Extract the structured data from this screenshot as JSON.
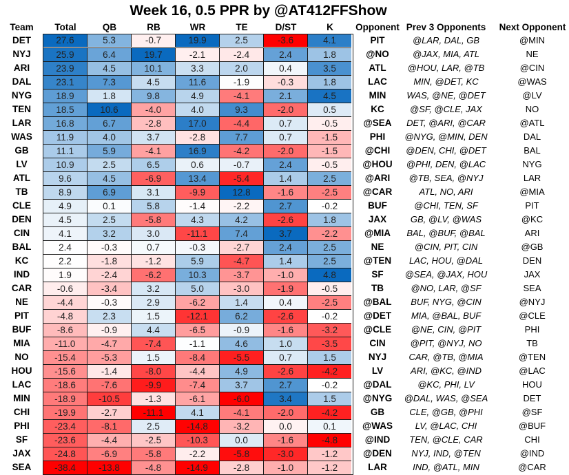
{
  "chart_data": {
    "type": "heatmap",
    "title": "Week 16, 0.5 PPR by @AT412FFShow",
    "columns": [
      "Team",
      "Total",
      "QB",
      "RB",
      "WR",
      "TE",
      "D/ST",
      "K",
      "Opponent",
      "Prev  3 Opponents",
      "Next Opponent"
    ],
    "color_scale": {
      "low": "#ff0000",
      "mid": "#ffffff",
      "high": "#0a6abf"
    },
    "rows": [
      {
        "team": "DET",
        "values": [
          27.6,
          5.3,
          -0.7,
          19.9,
          2.5,
          -3.6,
          4.1
        ],
        "opponent": "PIT",
        "prev": "@LAR, DAL, GB",
        "next": "@MIN"
      },
      {
        "team": "NYJ",
        "values": [
          25.9,
          6.4,
          19.7,
          -2.1,
          -2.4,
          2.4,
          1.8
        ],
        "opponent": "@NO",
        "prev": "@JAX, MIA, ATL",
        "next": "NE"
      },
      {
        "team": "ARI",
        "values": [
          23.9,
          4.5,
          10.1,
          3.3,
          2.0,
          0.4,
          3.5
        ],
        "opponent": "ATL",
        "prev": "@HOU, LAR, @TB",
        "next": "@CIN"
      },
      {
        "team": "DAL",
        "values": [
          23.1,
          7.3,
          4.5,
          11.6,
          -1.9,
          -0.3,
          1.8
        ],
        "opponent": "LAC",
        "prev": "MIN, @DET, KC",
        "next": "@WAS"
      },
      {
        "team": "NYG",
        "values": [
          18.9,
          1.8,
          9.8,
          4.9,
          -4.1,
          2.1,
          4.5
        ],
        "opponent": "MIN",
        "prev": "WAS, @NE, @DET",
        "next": "@LV"
      },
      {
        "team": "TEN",
        "values": [
          18.5,
          10.6,
          -4.0,
          4.0,
          9.3,
          -2.0,
          0.5
        ],
        "opponent": "KC",
        "prev": "@SF, @CLE, JAX",
        "next": "NO"
      },
      {
        "team": "LAR",
        "values": [
          16.8,
          6.7,
          -2.8,
          17.0,
          -4.4,
          0.7,
          -0.5
        ],
        "opponent": "@SEA",
        "prev": "DET, @ARI, @CAR",
        "next": "@ATL"
      },
      {
        "team": "WAS",
        "values": [
          11.9,
          4.0,
          3.7,
          -2.8,
          7.7,
          0.7,
          -1.5
        ],
        "opponent": "PHI",
        "prev": "@NYG, @MIN, DEN",
        "next": "DAL"
      },
      {
        "team": "GB",
        "values": [
          11.1,
          5.9,
          -4.1,
          16.9,
          -4.2,
          -2.0,
          -1.5
        ],
        "opponent": "@CHI",
        "prev": "@DEN, CHI, @DET",
        "next": "BAL"
      },
      {
        "team": "LV",
        "values": [
          10.9,
          2.5,
          6.5,
          0.6,
          -0.7,
          2.4,
          -0.5
        ],
        "opponent": "@HOU",
        "prev": "@PHI, DEN, @LAC",
        "next": "NYG"
      },
      {
        "team": "ATL",
        "values": [
          9.6,
          4.5,
          -6.9,
          13.4,
          -5.4,
          1.4,
          2.5
        ],
        "opponent": "@ARI",
        "prev": "@TB, SEA, @NYJ",
        "next": "LAR"
      },
      {
        "team": "TB",
        "values": [
          8.9,
          6.9,
          3.1,
          -9.9,
          12.8,
          -1.6,
          -2.5
        ],
        "opponent": "@CAR",
        "prev": "ATL, NO, ARI",
        "next": "@MIA"
      },
      {
        "team": "CLE",
        "values": [
          4.9,
          0.1,
          5.8,
          -1.4,
          -2.2,
          2.7,
          -0.2
        ],
        "opponent": "BUF",
        "prev": "@CHI, TEN, SF",
        "next": "PIT"
      },
      {
        "team": "DEN",
        "values": [
          4.5,
          2.5,
          -5.8,
          4.3,
          4.2,
          -2.6,
          1.8
        ],
        "opponent": "JAX",
        "prev": "GB, @LV, @WAS",
        "next": "@KC"
      },
      {
        "team": "CIN",
        "values": [
          4.1,
          3.2,
          3.0,
          -11.1,
          7.4,
          3.7,
          -2.2
        ],
        "opponent": "@MIA",
        "prev": "BAL, @BUF, @BAL",
        "next": "ARI"
      },
      {
        "team": "BAL",
        "values": [
          2.4,
          -0.3,
          0.7,
          -0.3,
          -2.7,
          2.4,
          2.5
        ],
        "opponent": "NE",
        "prev": "@CIN, PIT, CIN",
        "next": "@GB"
      },
      {
        "team": "KC",
        "values": [
          2.2,
          -1.8,
          -1.2,
          5.9,
          -4.7,
          1.4,
          2.5
        ],
        "opponent": "@TEN",
        "prev": "LAC, HOU, @DAL",
        "next": "DEN"
      },
      {
        "team": "IND",
        "values": [
          1.9,
          -2.4,
          -6.2,
          10.3,
          -3.7,
          -1.0,
          4.8
        ],
        "opponent": "SF",
        "prev": "@SEA, @JAX, HOU",
        "next": "JAX"
      },
      {
        "team": "CAR",
        "values": [
          -0.6,
          -3.4,
          3.2,
          5.0,
          -3.0,
          -1.9,
          -0.5
        ],
        "opponent": "TB",
        "prev": "@NO, LAR, @SF",
        "next": "SEA"
      },
      {
        "team": "NE",
        "values": [
          -4.4,
          -0.3,
          2.9,
          -6.2,
          1.4,
          0.4,
          -2.5
        ],
        "opponent": "@BAL",
        "prev": "BUF, NYG, @CIN",
        "next": "@NYJ"
      },
      {
        "team": "PIT",
        "values": [
          -4.8,
          2.3,
          1.5,
          -12.1,
          6.2,
          -2.6,
          -0.2
        ],
        "opponent": "@DET",
        "prev": "MIA, @BAL, BUF",
        "next": "@CLE"
      },
      {
        "team": "BUF",
        "values": [
          -8.6,
          -0.9,
          4.4,
          -6.5,
          -0.9,
          -1.6,
          -3.2
        ],
        "opponent": "@CLE",
        "prev": "@NE, CIN, @PIT",
        "next": "PHI"
      },
      {
        "team": "MIA",
        "values": [
          -11.0,
          -4.7,
          -7.4,
          -1.1,
          4.6,
          1.0,
          -3.5
        ],
        "opponent": "CIN",
        "prev": "@PIT, @NYJ, NO",
        "next": "TB"
      },
      {
        "team": "NO",
        "values": [
          -15.4,
          -5.3,
          1.5,
          -8.4,
          -5.5,
          0.7,
          1.5
        ],
        "opponent": "NYJ",
        "prev": "CAR, @TB, @MIA",
        "next": "@TEN"
      },
      {
        "team": "HOU",
        "values": [
          -15.6,
          -1.4,
          -8.0,
          -4.4,
          4.9,
          -2.6,
          -4.2
        ],
        "opponent": "LV",
        "prev": "ARI, @KC, @IND",
        "next": "@LAC"
      },
      {
        "team": "LAC",
        "values": [
          -18.6,
          -7.6,
          -9.9,
          -7.4,
          3.7,
          2.7,
          -0.2
        ],
        "opponent": "@DAL",
        "prev": "@KC, PHI, LV",
        "next": "HOU"
      },
      {
        "team": "MIN",
        "values": [
          -18.9,
          -10.5,
          -1.3,
          -6.1,
          -6.0,
          3.4,
          1.5
        ],
        "opponent": "@NYG",
        "prev": "@DAL, WAS, @SEA",
        "next": "DET"
      },
      {
        "team": "CHI",
        "values": [
          -19.9,
          -2.7,
          -11.1,
          4.1,
          -4.1,
          -2.0,
          -4.2
        ],
        "opponent": "GB",
        "prev": "CLE, @GB, @PHI",
        "next": "@SF"
      },
      {
        "team": "PHI",
        "values": [
          -23.4,
          -8.1,
          2.5,
          -14.8,
          -3.2,
          0.0,
          0.1
        ],
        "opponent": "@WAS",
        "prev": "LV, @LAC, CHI",
        "next": "@BUF"
      },
      {
        "team": "SF",
        "values": [
          -23.6,
          -4.4,
          -2.5,
          -10.3,
          0.0,
          -1.6,
          -4.8
        ],
        "opponent": "@IND",
        "prev": "TEN, @CLE, CAR",
        "next": "CHI"
      },
      {
        "team": "JAX",
        "values": [
          -24.8,
          -6.9,
          -5.8,
          -2.2,
          -5.8,
          -3.0,
          -1.2
        ],
        "opponent": "@DEN",
        "prev": "NYJ, IND, @TEN",
        "next": "@IND"
      },
      {
        "team": "SEA",
        "values": [
          -38.4,
          -13.8,
          -4.8,
          -14.9,
          -2.8,
          -1.0,
          -1.2
        ],
        "opponent": "LAR",
        "prev": "IND, @ATL, MIN",
        "next": "@CAR"
      }
    ]
  }
}
